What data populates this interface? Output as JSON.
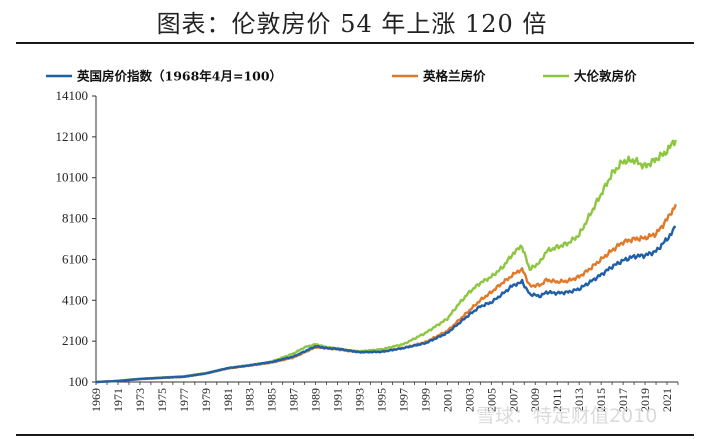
{
  "chart_data": {
    "type": "line",
    "title": "图表：伦敦房价 54 年上涨 120 倍",
    "ylim": [
      100,
      14100
    ],
    "yticks": [
      100,
      2100,
      4100,
      6100,
      8100,
      10100,
      12100,
      14100
    ],
    "xlim": [
      1969,
      2022
    ],
    "xticks": [
      "1969",
      "1971",
      "1973",
      "1975",
      "1977",
      "1979",
      "1981",
      "1983",
      "1985",
      "1987",
      "1989",
      "1991",
      "1993",
      "1995",
      "1997",
      "1999",
      "2001",
      "2003",
      "2005",
      "2007",
      "2009",
      "2011",
      "2013",
      "2015",
      "2017",
      "2019",
      "2021"
    ],
    "legend_position": "top",
    "grid": false,
    "series": [
      {
        "name": "英国房价指数（1968年4月=100）",
        "color": "#1f5fa8",
        "points": [
          [
            1969,
            100
          ],
          [
            1971,
            150
          ],
          [
            1973,
            250
          ],
          [
            1975,
            310
          ],
          [
            1977,
            360
          ],
          [
            1979,
            520
          ],
          [
            1981,
            780
          ],
          [
            1983,
            920
          ],
          [
            1985,
            1080
          ],
          [
            1987,
            1350
          ],
          [
            1988,
            1600
          ],
          [
            1989,
            1850
          ],
          [
            1990,
            1760
          ],
          [
            1991,
            1720
          ],
          [
            1992,
            1640
          ],
          [
            1993,
            1560
          ],
          [
            1995,
            1580
          ],
          [
            1997,
            1760
          ],
          [
            1999,
            2000
          ],
          [
            2001,
            2500
          ],
          [
            2002,
            2950
          ],
          [
            2003,
            3400
          ],
          [
            2004,
            3800
          ],
          [
            2005,
            4000
          ],
          [
            2006,
            4400
          ],
          [
            2007,
            4850
          ],
          [
            2007.8,
            5000
          ],
          [
            2008.5,
            4400
          ],
          [
            2009.5,
            4300
          ],
          [
            2010,
            4500
          ],
          [
            2011,
            4450
          ],
          [
            2012,
            4500
          ],
          [
            2013,
            4650
          ],
          [
            2014,
            5000
          ],
          [
            2015,
            5350
          ],
          [
            2016,
            5750
          ],
          [
            2017,
            6050
          ],
          [
            2018,
            6250
          ],
          [
            2019,
            6300
          ],
          [
            2020,
            6500
          ],
          [
            2021,
            7100
          ],
          [
            2021.8,
            7700
          ]
        ]
      },
      {
        "name": "英格兰房价",
        "color": "#e07a2a",
        "points": [
          [
            1969,
            100
          ],
          [
            1971,
            150
          ],
          [
            1973,
            240
          ],
          [
            1975,
            300
          ],
          [
            1977,
            350
          ],
          [
            1979,
            510
          ],
          [
            1981,
            760
          ],
          [
            1983,
            900
          ],
          [
            1985,
            1050
          ],
          [
            1987,
            1300
          ],
          [
            1988,
            1550
          ],
          [
            1989,
            1800
          ],
          [
            1990,
            1750
          ],
          [
            1991,
            1700
          ],
          [
            1992,
            1620
          ],
          [
            1993,
            1560
          ],
          [
            1995,
            1580
          ],
          [
            1997,
            1770
          ],
          [
            1999,
            2050
          ],
          [
            2001,
            2600
          ],
          [
            2002,
            3100
          ],
          [
            2003,
            3600
          ],
          [
            2004,
            4100
          ],
          [
            2005,
            4500
          ],
          [
            2006,
            4950
          ],
          [
            2007,
            5350
          ],
          [
            2007.8,
            5650
          ],
          [
            2008.5,
            4800
          ],
          [
            2009.5,
            4850
          ],
          [
            2010,
            5100
          ],
          [
            2011,
            5000
          ],
          [
            2012,
            5050
          ],
          [
            2013,
            5250
          ],
          [
            2014,
            5650
          ],
          [
            2015,
            6100
          ],
          [
            2016,
            6550
          ],
          [
            2017,
            6950
          ],
          [
            2018,
            7100
          ],
          [
            2019,
            7150
          ],
          [
            2020,
            7350
          ],
          [
            2021,
            8050
          ],
          [
            2021.8,
            8800
          ]
        ]
      },
      {
        "name": "大伦敦房价",
        "color": "#8dc63f",
        "points": [
          [
            1969,
            100
          ],
          [
            1971,
            160
          ],
          [
            1973,
            260
          ],
          [
            1975,
            320
          ],
          [
            1977,
            380
          ],
          [
            1979,
            540
          ],
          [
            1981,
            780
          ],
          [
            1983,
            920
          ],
          [
            1985,
            1100
          ],
          [
            1987,
            1500
          ],
          [
            1988,
            1800
          ],
          [
            1989,
            1950
          ],
          [
            1990,
            1800
          ],
          [
            1991,
            1750
          ],
          [
            1992,
            1650
          ],
          [
            1993,
            1600
          ],
          [
            1995,
            1700
          ],
          [
            1997,
            1950
          ],
          [
            1999,
            2500
          ],
          [
            2001,
            3200
          ],
          [
            2002,
            3900
          ],
          [
            2003,
            4500
          ],
          [
            2004,
            4950
          ],
          [
            2005,
            5250
          ],
          [
            2006,
            5700
          ],
          [
            2007,
            6400
          ],
          [
            2007.8,
            6750
          ],
          [
            2008.5,
            5600
          ],
          [
            2009.5,
            6000
          ],
          [
            2010,
            6500
          ],
          [
            2011,
            6700
          ],
          [
            2012,
            6900
          ],
          [
            2013,
            7300
          ],
          [
            2014,
            8300
          ],
          [
            2015,
            9300
          ],
          [
            2016,
            10300
          ],
          [
            2017,
            10900
          ],
          [
            2018,
            10950
          ],
          [
            2019,
            10650
          ],
          [
            2020,
            11000
          ],
          [
            2021,
            11400
          ],
          [
            2021.8,
            11950
          ]
        ]
      }
    ]
  },
  "watermark": "雪球：特定财值2010"
}
